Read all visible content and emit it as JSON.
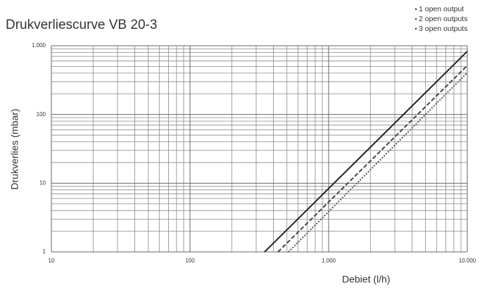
{
  "chart_data": {
    "type": "line",
    "title": "Drukverliescurve VB 20-3",
    "x_label": "Debiet (l/h)",
    "y_label": "Drukverlies (mbar)",
    "xlog": true,
    "ylog": true,
    "grid": true,
    "minor_grid": true,
    "legend": "top-right",
    "xlim": [
      10,
      10000
    ],
    "ylim": [
      1,
      1000
    ],
    "xticks": [
      10,
      100,
      {
        "value": 1000,
        "label": "1.000"
      },
      {
        "value": 10000,
        "label": "10.000"
      }
    ],
    "yticks": [
      1,
      10,
      100,
      {
        "value": 1000,
        "label": "1.000"
      }
    ],
    "series": [
      {
        "name": "1 open output",
        "color": "#222222",
        "dash": "solid",
        "x": [
          345,
          10000
        ],
        "values": [
          1,
          830
        ]
      },
      {
        "name": "2 open outputs",
        "color": "#444444",
        "dash": "dashed",
        "x": [
          431,
          10000
        ],
        "values": [
          1,
          515
        ]
      },
      {
        "name": "3 open outputs",
        "color": "#555555",
        "dash": "dotted",
        "x": [
          513,
          10000
        ],
        "values": [
          1,
          407
        ]
      }
    ]
  }
}
